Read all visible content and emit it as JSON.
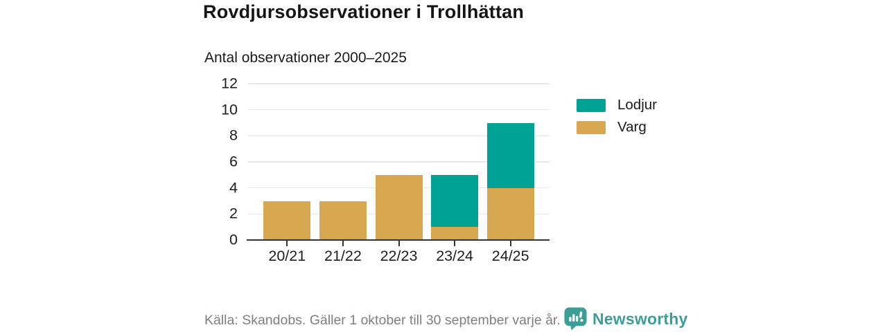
{
  "title": "Rovdjursobservationer i Trollhättan",
  "subtitle": "Antal observationer 2000–2025",
  "chart_data": {
    "type": "bar",
    "stacked": true,
    "title": "Rovdjursobservationer i Trollhättan",
    "subtitle": "Antal observationer 2000–2025",
    "categories": [
      "20/21",
      "21/22",
      "22/23",
      "23/24",
      "24/25"
    ],
    "series": [
      {
        "name": "Lodjur",
        "color": "#00a296",
        "values": [
          0,
          0,
          0,
          4,
          5
        ]
      },
      {
        "name": "Varg",
        "color": "#d8a850",
        "values": [
          3,
          3,
          5,
          1,
          4
        ]
      }
    ],
    "totals": [
      3,
      3,
      5,
      5,
      9
    ],
    "xlabel": "",
    "ylabel": "",
    "ylim": [
      0,
      12
    ],
    "yticks": [
      0,
      2,
      4,
      6,
      8,
      10,
      12
    ],
    "grid": true,
    "legend_position": "right"
  },
  "legend": {
    "items": [
      {
        "label": "Lodjur",
        "color": "#00a296"
      },
      {
        "label": "Varg",
        "color": "#d8a850"
      }
    ]
  },
  "footer": {
    "source": "Källa: Skandobs. Gäller 1 oktober till 30 september varje år.",
    "brand": "Newsworthy",
    "brand_color": "#3d9e97"
  },
  "colors": {
    "axis": "#333333",
    "gridline": "#e7e7e7",
    "tick": "#333333"
  }
}
